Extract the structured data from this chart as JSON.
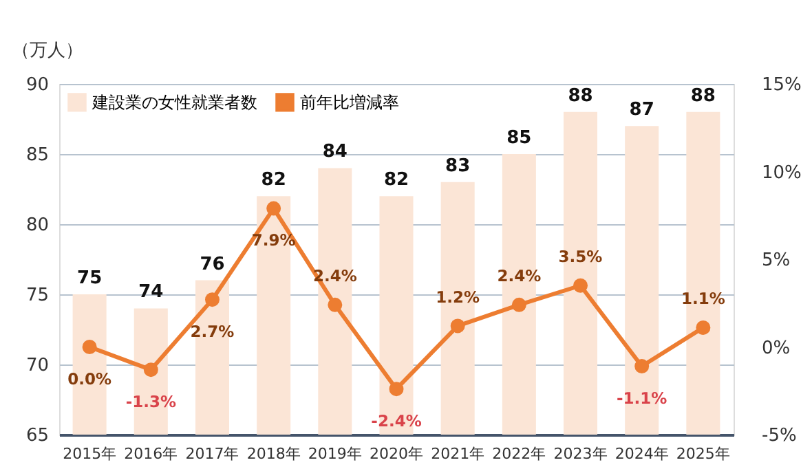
{
  "chart_data": {
    "type": "bar",
    "ylabel": "（万人）",
    "categories": [
      "2015年",
      "2016年",
      "2017年",
      "2018年",
      "2019年",
      "2020年",
      "2021年",
      "2022年",
      "2023年",
      "2024年",
      "2025年"
    ],
    "series": [
      {
        "name": "建設業の女性就業者数",
        "color": "#fbe5d6",
        "values": [
          75,
          74,
          76,
          82,
          84,
          82,
          83,
          85,
          88,
          87,
          88
        ],
        "value_labels": [
          "75",
          "74",
          "76",
          "82",
          "84",
          "82",
          "83",
          "85",
          "88",
          "87",
          "88"
        ]
      },
      {
        "name": "前年比増減率",
        "type": "line",
        "axis": "y2",
        "color": "#ed7d31",
        "values": [
          0.0,
          -1.3,
          2.7,
          7.9,
          2.4,
          -2.4,
          1.2,
          2.4,
          3.5,
          -1.1,
          1.1
        ],
        "value_labels": [
          "0.0%",
          "-1.3%",
          "2.7%",
          "7.9%",
          "2.4%",
          "-2.4%",
          "1.2%",
          "2.4%",
          "3.5%",
          "-1.1%",
          "1.1%"
        ]
      }
    ],
    "ylim": [
      65,
      90
    ],
    "yticks": [
      65,
      70,
      75,
      80,
      85,
      90
    ],
    "y2lim": [
      -5,
      15
    ],
    "y2ticks": [
      {
        "value": -5,
        "label": "-5%"
      },
      {
        "value": 0,
        "label": "0%"
      },
      {
        "value": 5,
        "label": "5%"
      },
      {
        "value": 10,
        "label": "10%"
      },
      {
        "value": 15,
        "label": "15%"
      }
    ],
    "grid": "y",
    "legend": "top left",
    "marker": "circle",
    "line_style": "solid"
  }
}
